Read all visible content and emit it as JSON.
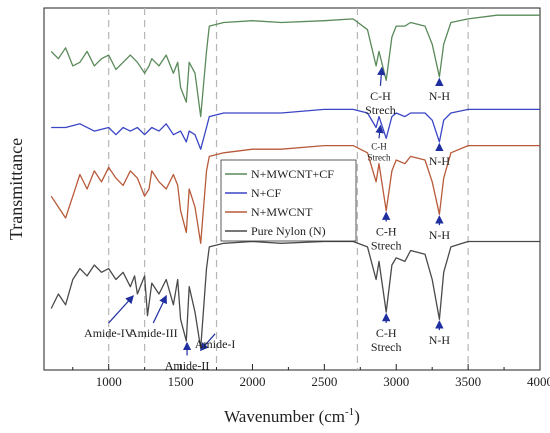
{
  "chart_data": {
    "type": "line",
    "xlabel_text": "Wavenumber (cm",
    "xlabel_sup": "-1",
    "xlabel_close": ")",
    "ylabel": "Transmittance",
    "xlim": [
      550,
      4000
    ],
    "x_ticks": [
      1000,
      1500,
      2000,
      2500,
      3000,
      3500,
      4000
    ],
    "dashed_lines_x": [
      1000,
      1250,
      1750,
      2730,
      3500
    ],
    "legend": [
      "N+MWCNT+CF",
      "N+CF",
      "N+MWCNT",
      "Pure Nylon (N)"
    ],
    "series": [
      {
        "name": "N+MWCNT+CF",
        "color": "#5a8a5a",
        "points": [
          [
            600,
            0.12
          ],
          [
            650,
            0.14
          ],
          [
            700,
            0.11
          ],
          [
            750,
            0.16
          ],
          [
            800,
            0.15
          ],
          [
            850,
            0.12
          ],
          [
            900,
            0.16
          ],
          [
            950,
            0.14
          ],
          [
            1000,
            0.13
          ],
          [
            1050,
            0.17
          ],
          [
            1100,
            0.15
          ],
          [
            1150,
            0.13
          ],
          [
            1200,
            0.15
          ],
          [
            1250,
            0.18
          ],
          [
            1280,
            0.16
          ],
          [
            1300,
            0.14
          ],
          [
            1350,
            0.16
          ],
          [
            1400,
            0.13
          ],
          [
            1450,
            0.18
          ],
          [
            1480,
            0.15
          ],
          [
            1500,
            0.22
          ],
          [
            1540,
            0.26
          ],
          [
            1560,
            0.15
          ],
          [
            1600,
            0.18
          ],
          [
            1640,
            0.3
          ],
          [
            1680,
            0.12
          ],
          [
            1700,
            0.05
          ],
          [
            1800,
            0.04
          ],
          [
            2000,
            0.035
          ],
          [
            2200,
            0.04
          ],
          [
            2500,
            0.035
          ],
          [
            2700,
            0.03
          ],
          [
            2800,
            0.06
          ],
          [
            2860,
            0.16
          ],
          [
            2880,
            0.12
          ],
          [
            2930,
            0.2
          ],
          [
            2970,
            0.08
          ],
          [
            3000,
            0.05
          ],
          [
            3060,
            0.05
          ],
          [
            3100,
            0.04
          ],
          [
            3200,
            0.05
          ],
          [
            3250,
            0.1
          ],
          [
            3300,
            0.19
          ],
          [
            3330,
            0.1
          ],
          [
            3380,
            0.04
          ],
          [
            3500,
            0.03
          ],
          [
            3700,
            0.02
          ],
          [
            4000,
            0.02
          ]
        ]
      },
      {
        "name": "N+CF",
        "color": "#3a46c4",
        "points": [
          [
            600,
            0.33
          ],
          [
            700,
            0.33
          ],
          [
            800,
            0.32
          ],
          [
            900,
            0.34
          ],
          [
            1000,
            0.33
          ],
          [
            1050,
            0.35
          ],
          [
            1100,
            0.33
          ],
          [
            1150,
            0.34
          ],
          [
            1200,
            0.33
          ],
          [
            1250,
            0.35
          ],
          [
            1300,
            0.33
          ],
          [
            1350,
            0.34
          ],
          [
            1400,
            0.32
          ],
          [
            1450,
            0.35
          ],
          [
            1500,
            0.34
          ],
          [
            1540,
            0.37
          ],
          [
            1560,
            0.34
          ],
          [
            1600,
            0.35
          ],
          [
            1640,
            0.39
          ],
          [
            1680,
            0.33
          ],
          [
            1700,
            0.3
          ],
          [
            1800,
            0.29
          ],
          [
            2000,
            0.29
          ],
          [
            2200,
            0.29
          ],
          [
            2500,
            0.28
          ],
          [
            2700,
            0.28
          ],
          [
            2800,
            0.29
          ],
          [
            2860,
            0.33
          ],
          [
            2880,
            0.3
          ],
          [
            2930,
            0.36
          ],
          [
            2970,
            0.3
          ],
          [
            3000,
            0.29
          ],
          [
            3060,
            0.3
          ],
          [
            3100,
            0.29
          ],
          [
            3200,
            0.29
          ],
          [
            3250,
            0.31
          ],
          [
            3300,
            0.37
          ],
          [
            3330,
            0.31
          ],
          [
            3380,
            0.29
          ],
          [
            3500,
            0.28
          ],
          [
            3700,
            0.28
          ],
          [
            4000,
            0.28
          ]
        ]
      },
      {
        "name": "N+MWCNT",
        "color": "#b85a3a",
        "points": [
          [
            600,
            0.52
          ],
          [
            650,
            0.55
          ],
          [
            700,
            0.58
          ],
          [
            750,
            0.52
          ],
          [
            800,
            0.46
          ],
          [
            850,
            0.5
          ],
          [
            900,
            0.45
          ],
          [
            950,
            0.48
          ],
          [
            1000,
            0.44
          ],
          [
            1050,
            0.47
          ],
          [
            1100,
            0.49
          ],
          [
            1150,
            0.45
          ],
          [
            1200,
            0.47
          ],
          [
            1250,
            0.52
          ],
          [
            1280,
            0.5
          ],
          [
            1300,
            0.45
          ],
          [
            1350,
            0.48
          ],
          [
            1400,
            0.5
          ],
          [
            1450,
            0.46
          ],
          [
            1480,
            0.49
          ],
          [
            1500,
            0.56
          ],
          [
            1540,
            0.62
          ],
          [
            1560,
            0.5
          ],
          [
            1600,
            0.55
          ],
          [
            1640,
            0.65
          ],
          [
            1680,
            0.45
          ],
          [
            1700,
            0.41
          ],
          [
            1800,
            0.4
          ],
          [
            2000,
            0.39
          ],
          [
            2200,
            0.39
          ],
          [
            2500,
            0.38
          ],
          [
            2700,
            0.38
          ],
          [
            2800,
            0.4
          ],
          [
            2860,
            0.48
          ],
          [
            2880,
            0.43
          ],
          [
            2930,
            0.56
          ],
          [
            2970,
            0.45
          ],
          [
            3000,
            0.42
          ],
          [
            3060,
            0.43
          ],
          [
            3100,
            0.41
          ],
          [
            3200,
            0.42
          ],
          [
            3250,
            0.48
          ],
          [
            3300,
            0.57
          ],
          [
            3330,
            0.47
          ],
          [
            3380,
            0.4
          ],
          [
            3500,
            0.38
          ],
          [
            3700,
            0.38
          ],
          [
            4000,
            0.38
          ]
        ]
      },
      {
        "name": "Pure Nylon (N)",
        "color": "#4a4a4a",
        "points": [
          [
            600,
            0.83
          ],
          [
            650,
            0.79
          ],
          [
            700,
            0.82
          ],
          [
            750,
            0.75
          ],
          [
            800,
            0.72
          ],
          [
            850,
            0.74
          ],
          [
            900,
            0.71
          ],
          [
            950,
            0.73
          ],
          [
            1000,
            0.72
          ],
          [
            1050,
            0.75
          ],
          [
            1100,
            0.73
          ],
          [
            1150,
            0.77
          ],
          [
            1180,
            0.74
          ],
          [
            1200,
            0.79
          ],
          [
            1250,
            0.74
          ],
          [
            1270,
            0.85
          ],
          [
            1300,
            0.76
          ],
          [
            1350,
            0.79
          ],
          [
            1400,
            0.75
          ],
          [
            1450,
            0.82
          ],
          [
            1480,
            0.75
          ],
          [
            1500,
            0.86
          ],
          [
            1540,
            0.92
          ],
          [
            1560,
            0.77
          ],
          [
            1600,
            0.84
          ],
          [
            1640,
            0.94
          ],
          [
            1680,
            0.72
          ],
          [
            1700,
            0.66
          ],
          [
            1800,
            0.65
          ],
          [
            2000,
            0.645
          ],
          [
            2200,
            0.65
          ],
          [
            2500,
            0.645
          ],
          [
            2700,
            0.645
          ],
          [
            2800,
            0.66
          ],
          [
            2860,
            0.75
          ],
          [
            2880,
            0.7
          ],
          [
            2930,
            0.84
          ],
          [
            2970,
            0.71
          ],
          [
            3000,
            0.69
          ],
          [
            3060,
            0.7
          ],
          [
            3100,
            0.67
          ],
          [
            3200,
            0.68
          ],
          [
            3250,
            0.75
          ],
          [
            3300,
            0.86
          ],
          [
            3330,
            0.73
          ],
          [
            3380,
            0.66
          ],
          [
            3500,
            0.645
          ],
          [
            3700,
            0.645
          ],
          [
            4000,
            0.645
          ]
        ]
      }
    ],
    "annotations": [
      {
        "label": "C-H",
        "label2": "Strech",
        "x": 2900,
        "y": 0.16,
        "lx": 2890,
        "ly": 0.215,
        "small": false,
        "name": "annotation-ch-mwcnt-cf"
      },
      {
        "label": "N-H",
        "label2": "",
        "x": 3300,
        "y": 0.19,
        "lx": 3300,
        "ly": 0.215,
        "small": false,
        "name": "annotation-nh-mwcnt-cf"
      },
      {
        "label": "C-H",
        "label2": "Strech",
        "x": 2890,
        "y": 0.32,
        "lx": 2880,
        "ly": 0.36,
        "small": true,
        "name": "annotation-ch-cf"
      },
      {
        "label": "N-H",
        "label2": "",
        "x": 3300,
        "y": 0.37,
        "lx": 3300,
        "ly": 0.395,
        "small": false,
        "name": "annotation-nh-cf"
      },
      {
        "label": "C-H",
        "label2": "Strech",
        "x": 2930,
        "y": 0.56,
        "lx": 2930,
        "ly": 0.59,
        "small": false,
        "name": "annotation-ch-mwcnt"
      },
      {
        "label": "N-H",
        "label2": "",
        "x": 3300,
        "y": 0.57,
        "lx": 3300,
        "ly": 0.6,
        "small": false,
        "name": "annotation-nh-mwcnt"
      },
      {
        "label": "C-H",
        "label2": "Strech",
        "x": 2930,
        "y": 0.84,
        "lx": 2930,
        "ly": 0.87,
        "small": false,
        "name": "annotation-ch-nylon"
      },
      {
        "label": "N-H",
        "label2": "",
        "x": 3300,
        "y": 0.86,
        "lx": 3300,
        "ly": 0.89,
        "small": false,
        "name": "annotation-nh-nylon"
      },
      {
        "label": "Amide-IV",
        "label2": "",
        "x": 1170,
        "y": 0.79,
        "lx": 1000,
        "ly": 0.87,
        "small": false,
        "name": "annotation-amide-iv"
      },
      {
        "label": "Amide-III",
        "label2": "",
        "x": 1400,
        "y": 0.79,
        "lx": 1310,
        "ly": 0.87,
        "small": false,
        "name": "annotation-amide-iii"
      },
      {
        "label": "Amide-II",
        "label2": "",
        "x": 1545,
        "y": 0.92,
        "lx": 1545,
        "ly": 0.96,
        "small": false,
        "name": "annotation-amide-ii"
      },
      {
        "label": "Amide-I",
        "label2": "",
        "x": 1640,
        "y": 0.94,
        "lx": 1740,
        "ly": 0.9,
        "small": false,
        "name": "annotation-amide-i"
      }
    ]
  }
}
